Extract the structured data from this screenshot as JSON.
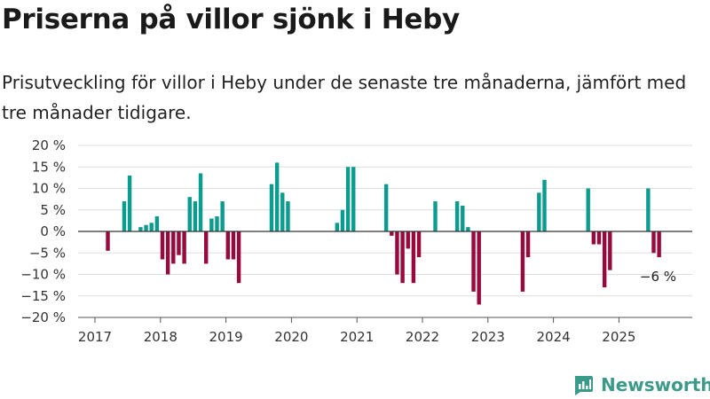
{
  "title": "Priserna på villor sjönk i Heby",
  "subtitle": "Prisutveckling för villor i Heby under de senaste tre månaderna, jämfört med tre månader tidigare.",
  "brand": {
    "name": "Newsworthy",
    "color": "#3c9a8b"
  },
  "chart_data": {
    "type": "bar",
    "grid": true,
    "ylim": [
      -20,
      20
    ],
    "ytick_labels": [
      "20 %",
      "15 %",
      "10 %",
      "5 %",
      "0 %",
      "−5 %",
      "−10 %",
      "−15 %",
      "−20 %"
    ],
    "ytick_values": [
      20,
      15,
      10,
      5,
      0,
      -5,
      -10,
      -15,
      -20
    ],
    "xtick_labels": [
      "2017",
      "2018",
      "2019",
      "2020",
      "2021",
      "2022",
      "2023",
      "2024",
      "2025"
    ],
    "x_start": "2017-01",
    "x_end": "2025-09",
    "colors": {
      "positive": "#0c9c8f",
      "negative": "#98093d",
      "grid": "#dddddd",
      "axis": "#555555"
    },
    "annotation": {
      "date": "2025-08",
      "value": -6,
      "text": "−6 %"
    },
    "series": [
      {
        "points": [
          {
            "date": "2017-03",
            "value": -4.5
          },
          {
            "date": "2017-06",
            "value": 7
          },
          {
            "date": "2017-07",
            "value": 13
          },
          {
            "date": "2017-09",
            "value": 1
          },
          {
            "date": "2017-10",
            "value": 1.5
          },
          {
            "date": "2017-11",
            "value": 2
          },
          {
            "date": "2017-12",
            "value": 3.5
          },
          {
            "date": "2018-01",
            "value": -6.5
          },
          {
            "date": "2018-02",
            "value": -10
          },
          {
            "date": "2018-03",
            "value": -7.5
          },
          {
            "date": "2018-04",
            "value": -5.5
          },
          {
            "date": "2018-05",
            "value": -7.5
          },
          {
            "date": "2018-06",
            "value": 8
          },
          {
            "date": "2018-07",
            "value": 7
          },
          {
            "date": "2018-08",
            "value": 13.5
          },
          {
            "date": "2018-09",
            "value": -7.5
          },
          {
            "date": "2018-10",
            "value": 3
          },
          {
            "date": "2018-11",
            "value": 3.5
          },
          {
            "date": "2018-12",
            "value": 7
          },
          {
            "date": "2019-01",
            "value": -6.5
          },
          {
            "date": "2019-02",
            "value": -6.5
          },
          {
            "date": "2019-03",
            "value": -12
          },
          {
            "date": "2019-09",
            "value": 11
          },
          {
            "date": "2019-10",
            "value": 16
          },
          {
            "date": "2019-11",
            "value": 9
          },
          {
            "date": "2019-12",
            "value": 7
          },
          {
            "date": "2020-09",
            "value": 2
          },
          {
            "date": "2020-10",
            "value": 5
          },
          {
            "date": "2020-11",
            "value": 15
          },
          {
            "date": "2020-12",
            "value": 15
          },
          {
            "date": "2021-06",
            "value": 11
          },
          {
            "date": "2021-07",
            "value": -1
          },
          {
            "date": "2021-08",
            "value": -10
          },
          {
            "date": "2021-09",
            "value": -12
          },
          {
            "date": "2021-10",
            "value": -4
          },
          {
            "date": "2021-11",
            "value": -12
          },
          {
            "date": "2021-12",
            "value": -6
          },
          {
            "date": "2022-03",
            "value": 7
          },
          {
            "date": "2022-07",
            "value": 7
          },
          {
            "date": "2022-08",
            "value": 6
          },
          {
            "date": "2022-09",
            "value": 1
          },
          {
            "date": "2022-10",
            "value": -14
          },
          {
            "date": "2022-11",
            "value": -17
          },
          {
            "date": "2023-07",
            "value": -14
          },
          {
            "date": "2023-08",
            "value": -6
          },
          {
            "date": "2023-10",
            "value": 9
          },
          {
            "date": "2023-11",
            "value": 12
          },
          {
            "date": "2024-07",
            "value": 10
          },
          {
            "date": "2024-08",
            "value": -3
          },
          {
            "date": "2024-09",
            "value": -3
          },
          {
            "date": "2024-10",
            "value": -13
          },
          {
            "date": "2024-11",
            "value": -9
          },
          {
            "date": "2025-06",
            "value": 10
          },
          {
            "date": "2025-07",
            "value": -5
          },
          {
            "date": "2025-08",
            "value": -6
          }
        ]
      }
    ]
  }
}
